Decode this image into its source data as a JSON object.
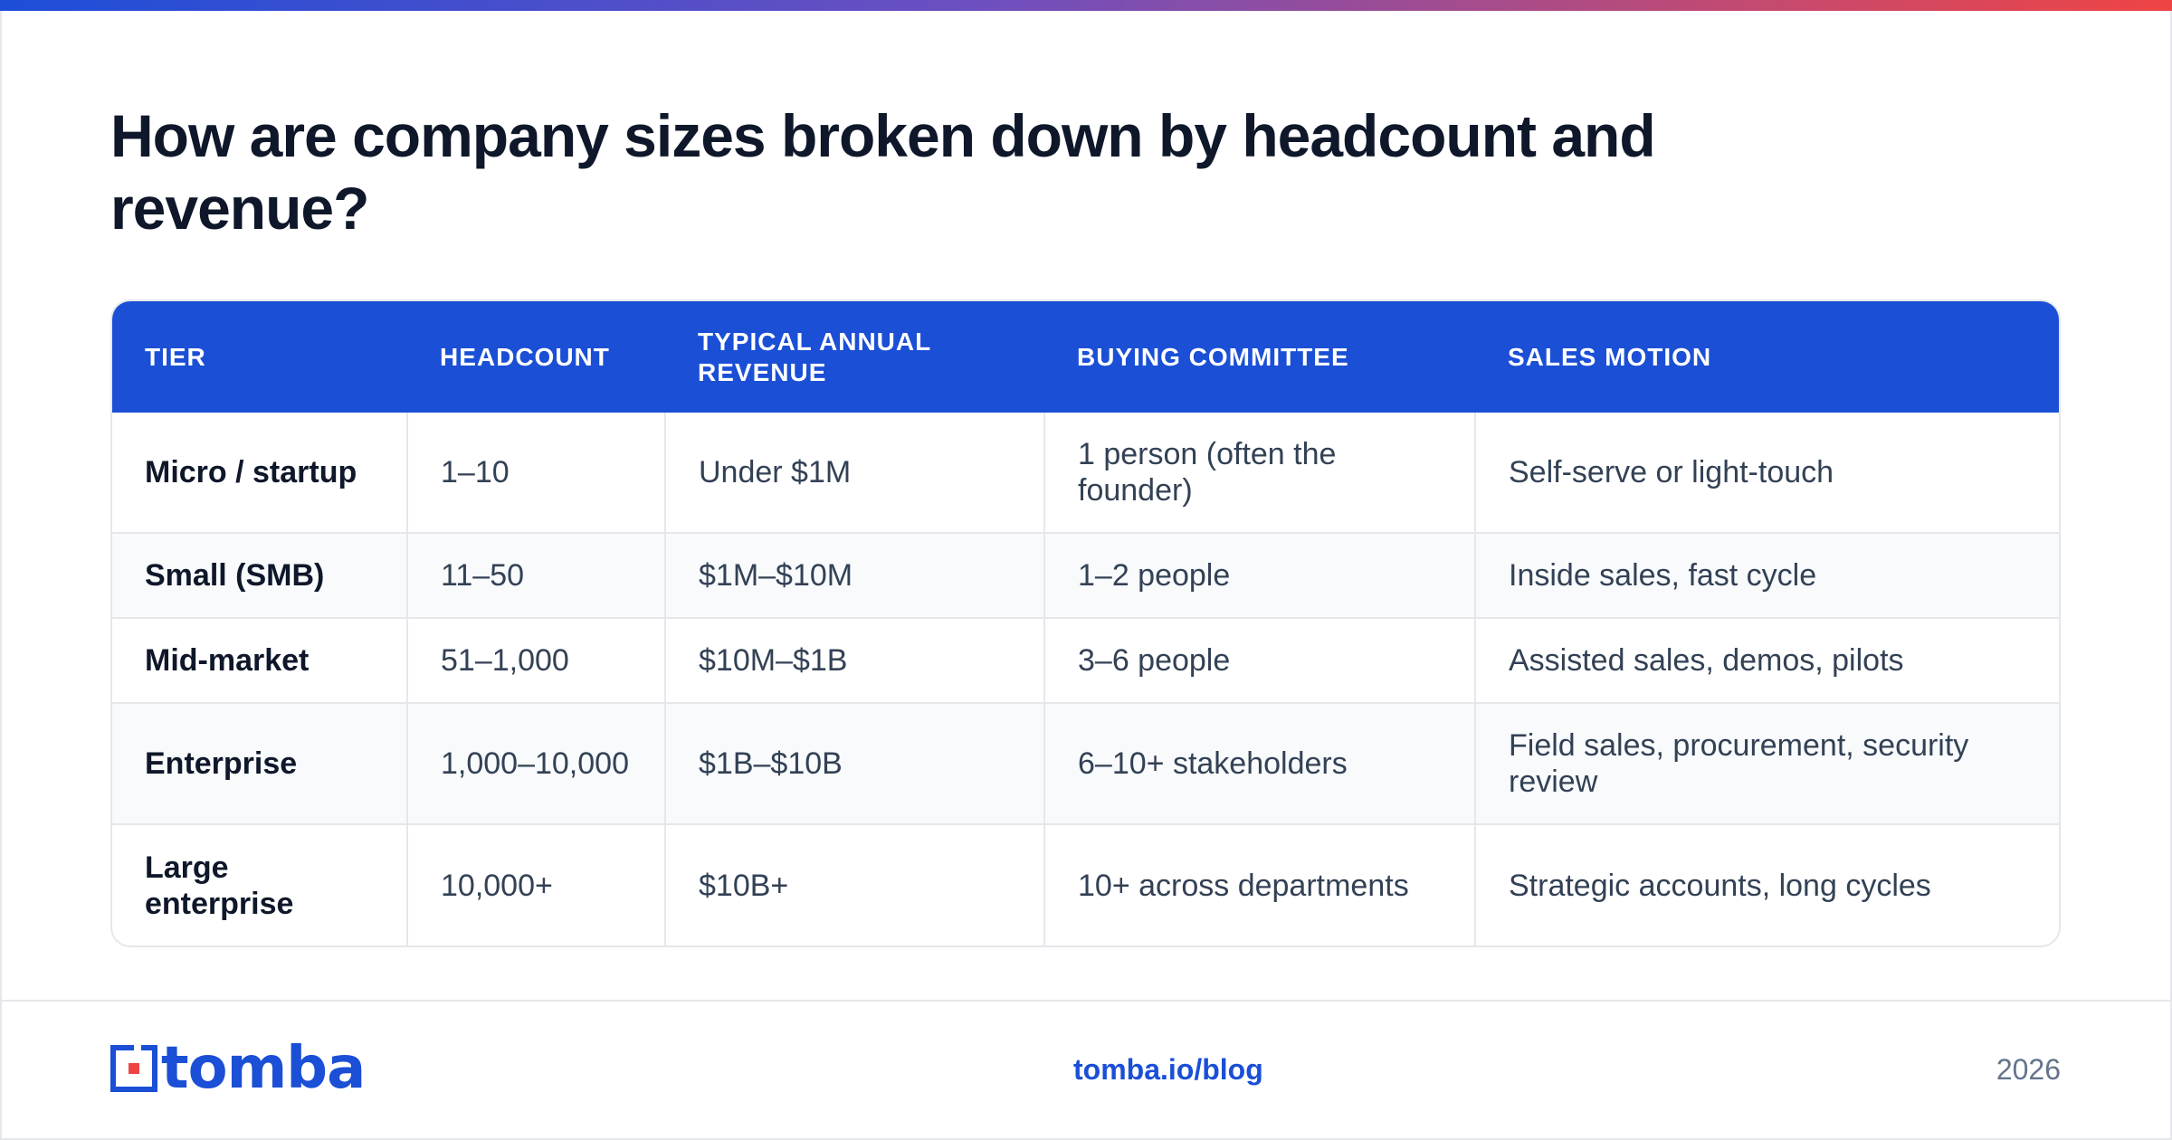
{
  "title": "How are company sizes broken down by headcount and revenue?",
  "table": {
    "headers": [
      "TIER",
      "HEADCOUNT",
      "TYPICAL ANNUAL REVENUE",
      "BUYING COMMITTEE",
      "SALES MOTION"
    ],
    "rows": [
      {
        "tier": "Micro / startup",
        "headcount": "1–10",
        "revenue": "Under $1M",
        "committee": "1 person (often the founder)",
        "motion": "Self-serve or light-touch"
      },
      {
        "tier": "Small (SMB)",
        "headcount": "11–50",
        "revenue": "$1M–$10M",
        "committee": "1–2 people",
        "motion": "Inside sales, fast cycle"
      },
      {
        "tier": "Mid-market",
        "headcount": "51–1,000",
        "revenue": "$10M–$1B",
        "committee": "3–6 people",
        "motion": "Assisted sales, demos, pilots"
      },
      {
        "tier": "Enterprise",
        "headcount": "1,000–10,000",
        "revenue": "$1B–$10B",
        "committee": "6–10+ stakeholders",
        "motion": "Field sales, procurement, security review"
      },
      {
        "tier": "Large enterprise",
        "headcount": "10,000+",
        "revenue": "$10B+",
        "committee": "10+ across departments",
        "motion": "Strategic accounts, long cycles"
      }
    ]
  },
  "footer": {
    "logo_text": "tomba",
    "link": "tomba.io/blog",
    "year": "2026"
  },
  "colors": {
    "accent": "#1a4fd6",
    "logo_red": "#ef4444"
  },
  "icons": {
    "logo": "tomba-logo-icon"
  }
}
